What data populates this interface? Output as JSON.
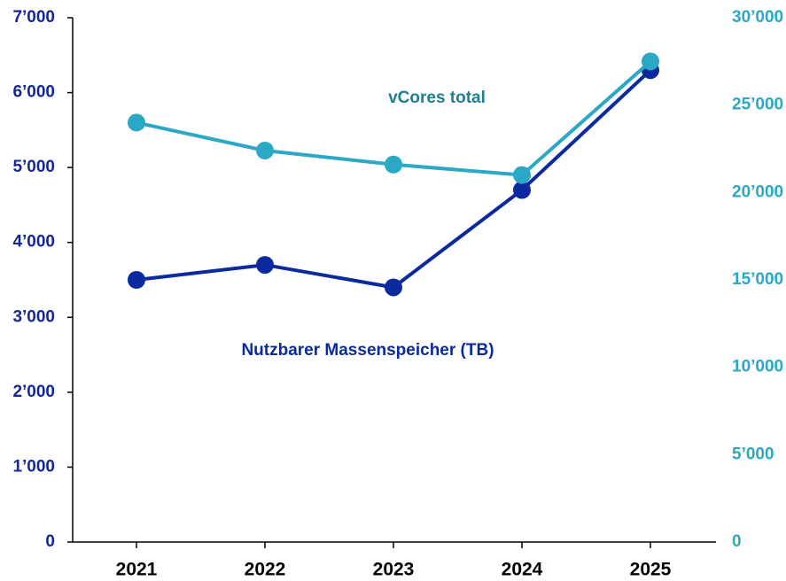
{
  "chart_data": {
    "type": "line",
    "categories": [
      "2021",
      "2022",
      "2023",
      "2024",
      "2025"
    ],
    "series": [
      {
        "name": "Nutzbarer Massenspeicher (TB)",
        "color": "#0b2a9f",
        "values": [
          3500,
          3700,
          3400,
          4700,
          6300
        ]
      },
      {
        "name": "vCores total",
        "color": "#2aa8c6",
        "axis": "y2",
        "values": [
          24000,
          22400,
          21600,
          21000,
          27500
        ]
      }
    ],
    "ylim": [
      0,
      7000
    ],
    "yticks": [
      0,
      {
        "value": 1000,
        "label": "1’000"
      },
      {
        "value": 2000,
        "label": "2’000"
      },
      {
        "value": 3000,
        "label": "3’000"
      },
      {
        "value": 4000,
        "label": "4’000"
      },
      {
        "value": 5000,
        "label": "5’000"
      },
      {
        "value": 6000,
        "label": "6’000"
      },
      {
        "value": 7000,
        "label": "7’000"
      }
    ],
    "y2lim": [
      0,
      30000
    ],
    "y2ticks": [
      0,
      {
        "value": 5000,
        "label": "5’000"
      },
      {
        "value": 10000,
        "label": "10’000"
      },
      {
        "value": 15000,
        "label": "15’000"
      },
      {
        "value": 20000,
        "label": "20’000"
      },
      {
        "value": 25000,
        "label": "25’000"
      },
      {
        "value": 30000,
        "label": "30’000"
      }
    ],
    "grid": false
  }
}
